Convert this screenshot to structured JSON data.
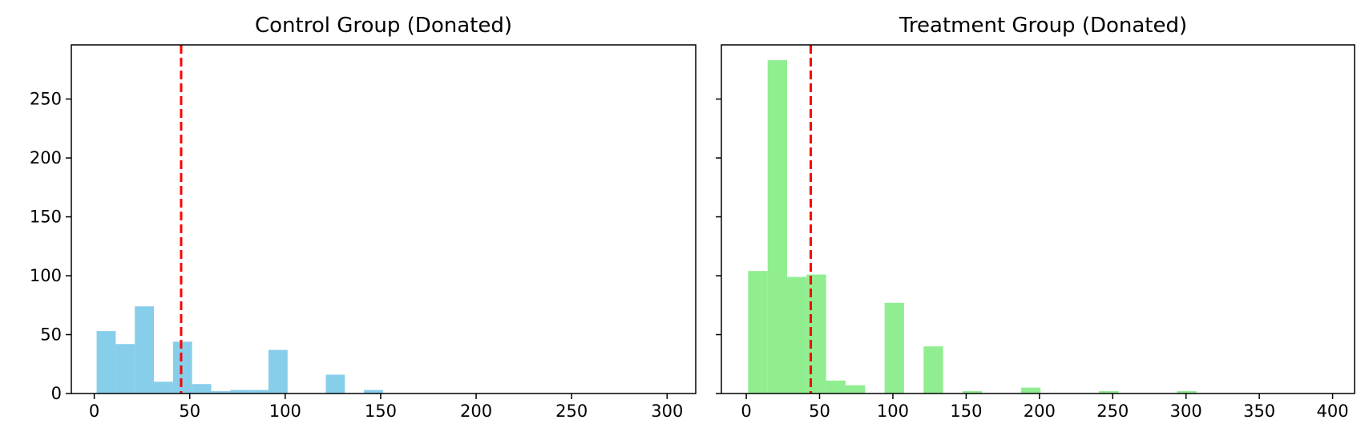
{
  "chart_data": [
    {
      "type": "histogram",
      "title": "Control Group (Donated)",
      "xlabel": "",
      "ylabel": "",
      "xlim": [
        -12,
        315
      ],
      "ylim": [
        0,
        296
      ],
      "xticks": [
        0,
        50,
        100,
        150,
        200,
        250,
        300
      ],
      "yticks": [
        0,
        50,
        100,
        150,
        200,
        250
      ],
      "bin_width": 10,
      "bins": [
        {
          "x0": 1.25,
          "x1": 11.25,
          "count": 53
        },
        {
          "x0": 11.25,
          "x1": 21.25,
          "count": 42
        },
        {
          "x0": 21.25,
          "x1": 31.25,
          "count": 74
        },
        {
          "x0": 31.25,
          "x1": 41.25,
          "count": 10
        },
        {
          "x0": 41.25,
          "x1": 51.25,
          "count": 44
        },
        {
          "x0": 51.25,
          "x1": 61.25,
          "count": 8
        },
        {
          "x0": 61.25,
          "x1": 71.25,
          "count": 2
        },
        {
          "x0": 71.25,
          "x1": 81.25,
          "count": 3
        },
        {
          "x0": 81.25,
          "x1": 91.25,
          "count": 3
        },
        {
          "x0": 91.25,
          "x1": 101.25,
          "count": 37
        },
        {
          "x0": 121.25,
          "x1": 131.25,
          "count": 16
        },
        {
          "x0": 141.25,
          "x1": 151.25,
          "count": 3
        }
      ],
      "mean_line": 45.5,
      "bar_color": "#87ceeb",
      "line_color": "#ff0000",
      "show_y_tick_labels": true
    },
    {
      "type": "histogram",
      "title": "Treatment Group (Donated)",
      "xlabel": "",
      "ylabel": "",
      "xlim": [
        -17,
        415
      ],
      "ylim": [
        0,
        296
      ],
      "xticks": [
        0,
        50,
        100,
        150,
        200,
        250,
        300,
        350,
        400
      ],
      "yticks": [
        0,
        50,
        100,
        150,
        200,
        250
      ],
      "bin_width": 13.3,
      "bins": [
        {
          "x0": 1.25,
          "x1": 14.55,
          "count": 104
        },
        {
          "x0": 14.55,
          "x1": 27.85,
          "count": 283
        },
        {
          "x0": 27.85,
          "x1": 41.15,
          "count": 99
        },
        {
          "x0": 41.15,
          "x1": 54.45,
          "count": 101
        },
        {
          "x0": 54.45,
          "x1": 67.75,
          "count": 11
        },
        {
          "x0": 67.75,
          "x1": 81.05,
          "count": 7
        },
        {
          "x0": 94.35,
          "x1": 107.65,
          "count": 77
        },
        {
          "x0": 120.95,
          "x1": 134.25,
          "count": 40
        },
        {
          "x0": 147.55,
          "x1": 160.85,
          "count": 2
        },
        {
          "x0": 187.45,
          "x1": 200.75,
          "count": 5
        },
        {
          "x0": 240.65,
          "x1": 253.95,
          "count": 2
        },
        {
          "x0": 293.85,
          "x1": 307.15,
          "count": 2
        }
      ],
      "mean_line": 44,
      "bar_color": "#90ee90",
      "line_color": "#ff0000",
      "show_y_tick_labels": false
    }
  ]
}
